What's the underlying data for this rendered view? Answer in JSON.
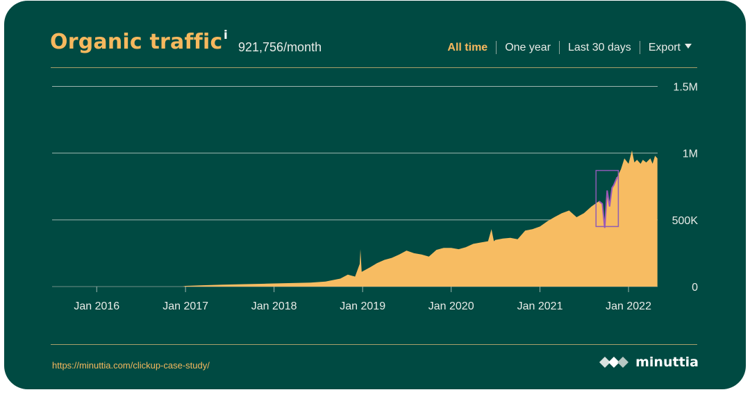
{
  "header": {
    "title": "Organic traffic",
    "info_marker": "i",
    "subtitle": "921,756/month"
  },
  "range_tabs": [
    {
      "label": "All time",
      "active": true
    },
    {
      "label": "One year",
      "active": false
    },
    {
      "label": "Last 30 days",
      "active": false
    },
    {
      "label": "Export",
      "active": false
    }
  ],
  "footer": {
    "url": "https://minuttia.com/clickup-case-study/",
    "brand": "minuttia"
  },
  "colors": {
    "background": "#004a42",
    "accent": "#f6b85e",
    "area": "#f7bc62",
    "highlight": "#9b59b6"
  },
  "chart_data": {
    "type": "area",
    "series": [
      {
        "values": [
          [
            "2016-12-20",
            0
          ],
          [
            "2017-01-01",
            5000
          ],
          [
            "2017-03-01",
            9000
          ],
          [
            "2017-06-01",
            14000
          ],
          [
            "2017-09-01",
            18000
          ],
          [
            "2017-12-01",
            22000
          ],
          [
            "2018-03-01",
            26000
          ],
          [
            "2018-06-01",
            30000
          ],
          [
            "2018-08-01",
            38000
          ],
          [
            "2018-10-01",
            60000
          ],
          [
            "2018-11-01",
            90000
          ],
          [
            "2018-12-01",
            75000
          ],
          [
            "2018-12-20",
            170000
          ],
          [
            "2018-12-23",
            280000
          ],
          [
            "2018-12-28",
            110000
          ],
          [
            "2019-02-01",
            145000
          ],
          [
            "2019-03-01",
            175000
          ],
          [
            "2019-04-01",
            200000
          ],
          [
            "2019-05-01",
            215000
          ],
          [
            "2019-06-01",
            240000
          ],
          [
            "2019-07-01",
            270000
          ],
          [
            "2019-08-01",
            250000
          ],
          [
            "2019-09-01",
            240000
          ],
          [
            "2019-10-01",
            225000
          ],
          [
            "2019-11-01",
            275000
          ],
          [
            "2019-12-01",
            290000
          ],
          [
            "2020-01-01",
            290000
          ],
          [
            "2020-02-01",
            280000
          ],
          [
            "2020-03-01",
            295000
          ],
          [
            "2020-04-01",
            320000
          ],
          [
            "2020-05-01",
            330000
          ],
          [
            "2020-06-01",
            340000
          ],
          [
            "2020-06-15",
            430000
          ],
          [
            "2020-06-25",
            340000
          ],
          [
            "2020-07-01",
            350000
          ],
          [
            "2020-08-01",
            360000
          ],
          [
            "2020-09-01",
            365000
          ],
          [
            "2020-10-01",
            355000
          ],
          [
            "2020-11-01",
            420000
          ],
          [
            "2020-12-01",
            430000
          ],
          [
            "2021-01-01",
            450000
          ],
          [
            "2021-02-01",
            490000
          ],
          [
            "2021-03-01",
            520000
          ],
          [
            "2021-04-01",
            550000
          ],
          [
            "2021-05-01",
            570000
          ],
          [
            "2021-06-01",
            520000
          ],
          [
            "2021-07-01",
            550000
          ],
          [
            "2021-08-01",
            600000
          ],
          [
            "2021-09-01",
            640000
          ],
          [
            "2021-09-15",
            620000
          ],
          [
            "2021-09-25",
            440000
          ],
          [
            "2021-10-05",
            720000
          ],
          [
            "2021-10-15",
            600000
          ],
          [
            "2021-10-25",
            740000
          ],
          [
            "2021-11-01",
            760000
          ],
          [
            "2021-11-15",
            820000
          ],
          [
            "2021-12-01",
            880000
          ],
          [
            "2021-12-15",
            960000
          ],
          [
            "2022-01-01",
            920000
          ],
          [
            "2022-01-15",
            1020000
          ],
          [
            "2022-01-25",
            930000
          ],
          [
            "2022-02-05",
            950000
          ],
          [
            "2022-02-20",
            920000
          ],
          [
            "2022-03-01",
            950000
          ],
          [
            "2022-03-15",
            930000
          ],
          [
            "2022-04-01",
            960000
          ],
          [
            "2022-04-10",
            920000
          ],
          [
            "2022-04-20",
            980000
          ],
          [
            "2022-04-30",
            960000
          ]
        ]
      }
    ],
    "xticks": [
      "Jan 2016",
      "Jan 2017",
      "Jan 2018",
      "Jan 2019",
      "Jan 2020",
      "Jan 2021",
      "Jan 2022"
    ],
    "yticks": [
      "0",
      "500K",
      "1M",
      "1.5M"
    ],
    "ylim": [
      0,
      1700000
    ],
    "xlim": [
      "2015-07-01",
      "2022-05-01"
    ],
    "grid": true,
    "highlight_range": {
      "x": [
        "2021-08-20",
        "2021-11-20"
      ],
      "y": [
        450000,
        870000
      ]
    }
  }
}
